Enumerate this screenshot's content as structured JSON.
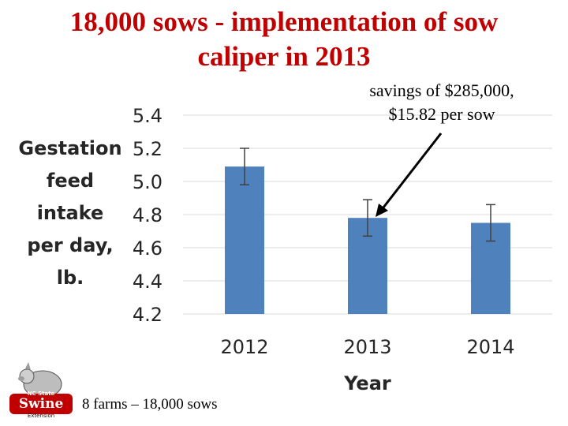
{
  "title": {
    "line1": "18,000 sows - implementation of sow",
    "line2": "caliper in 2013"
  },
  "annotation": {
    "line1": "savings of $285,000,",
    "line2": "$15.82 per sow"
  },
  "ylabel_lines": [
    "Gestation",
    "feed",
    "intake",
    "per day,",
    "lb."
  ],
  "footer": "8 farms – 18,000 sows",
  "logo": {
    "text_top": "NC State",
    "text_main": "Swine",
    "text_bottom": "Extension"
  },
  "colors": {
    "title": "#c00000",
    "bar": "#4f81bd",
    "axis_text": "#404040"
  },
  "chart_data": {
    "type": "bar",
    "categories": [
      "2012",
      "2013",
      "2014"
    ],
    "values": [
      5.09,
      4.78,
      4.75
    ],
    "error": [
      0.11,
      0.11,
      0.11
    ],
    "xlabel": "Year",
    "ylabel": "Gestation feed intake per day, lb.",
    "ylim": [
      4.2,
      5.4
    ],
    "yticks": [
      "5.4",
      "5.2",
      "5.0",
      "4.8",
      "4.6",
      "4.4",
      "4.2"
    ],
    "grid": true
  }
}
